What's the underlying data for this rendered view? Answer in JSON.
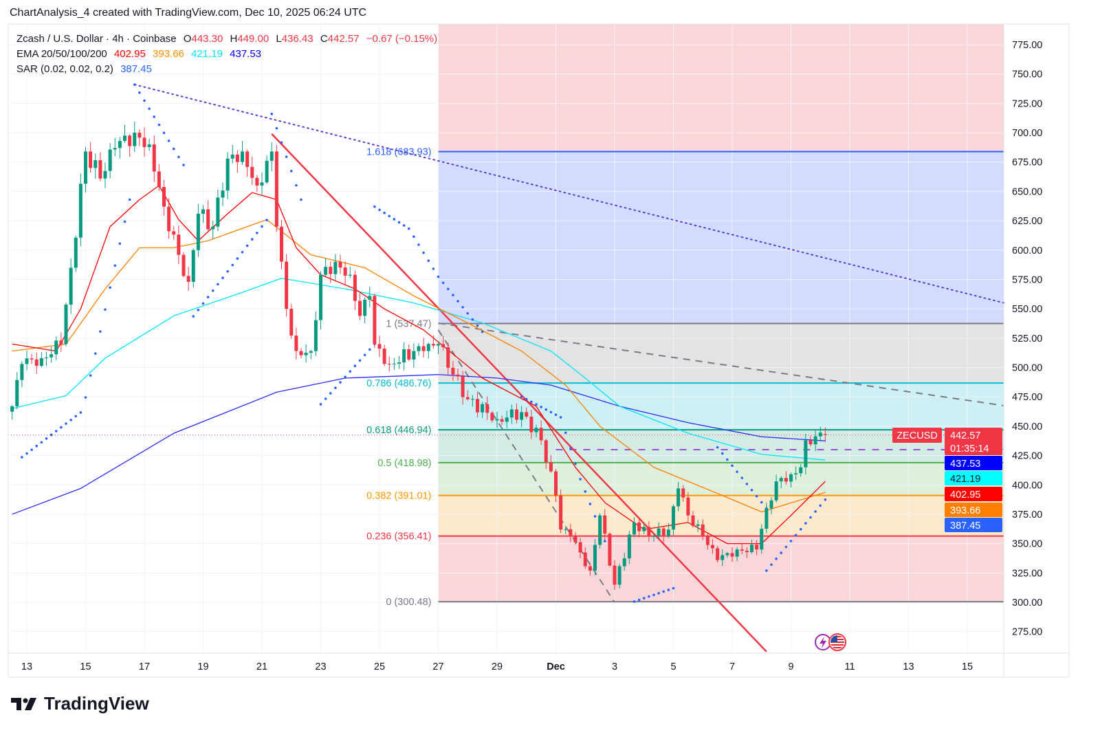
{
  "credit": "ChartAnalysis_4 created with TradingView.com, Dec 10, 2025 06:24 UTC",
  "legend": {
    "symbol": "Zcash / U.S. Dollar · 4h · Coinbase",
    "o_label": "O",
    "o": "443.30",
    "h_label": "H",
    "h": "449.00",
    "l_label": "L",
    "l": "436.43",
    "c_label": "C",
    "c": "442.57",
    "change": "−0.67 (−0.15%)",
    "ema_label": "EMA 20/50/100/200",
    "ema20": "402.95",
    "ema50": "393.66",
    "ema100": "421.19",
    "ema200": "437.53",
    "sar_label": "SAR (0.02, 0.02, 0.2)",
    "sar": "387.45"
  },
  "colors": {
    "up": "#089981",
    "down": "#f23645",
    "ema20": "#ff0000",
    "ema50": "#ff7f00",
    "ema100": "#00e5ff",
    "ema200": "#2a2aff",
    "sar": "#2962ff",
    "trend_red": "#f23645",
    "trend_dotted": "#5b3fd1",
    "dashed_gray": "#787b86",
    "dashed_purple": "#9c4fd6"
  },
  "logo": {
    "text": "TradingView"
  },
  "chart_data": {
    "type": "candlestick",
    "symbol_tag": "ZECUSD",
    "interval": "4h",
    "y_range": [
      262,
      785
    ],
    "x_range": [
      "2025-11-12T09:00",
      "2025-12-16T06:00"
    ],
    "price_axis": {
      "ticks": [
        "275.00",
        "300.00",
        "325.00",
        "350.00",
        "375.00",
        "400.00",
        "425.00",
        "450.00",
        "475.00",
        "500.00",
        "525.00",
        "550.00",
        "575.00",
        "600.00",
        "625.00",
        "650.00",
        "675.00",
        "700.00",
        "725.00",
        "750.00",
        "775.00"
      ]
    },
    "time_axis": {
      "ticks": [
        {
          "t": "2025-11-13T00:00",
          "label": "13"
        },
        {
          "t": "2025-11-15T00:00",
          "label": "15"
        },
        {
          "t": "2025-11-17T00:00",
          "label": "17"
        },
        {
          "t": "2025-11-19T00:00",
          "label": "19"
        },
        {
          "t": "2025-11-21T00:00",
          "label": "21"
        },
        {
          "t": "2025-11-23T00:00",
          "label": "23"
        },
        {
          "t": "2025-11-25T00:00",
          "label": "25"
        },
        {
          "t": "2025-11-27T00:00",
          "label": "27"
        },
        {
          "t": "2025-11-29T00:00",
          "label": "29"
        },
        {
          "t": "2025-12-01T00:00",
          "label": "Dec"
        },
        {
          "t": "2025-12-03T00:00",
          "label": "3"
        },
        {
          "t": "2025-12-05T00:00",
          "label": "5"
        },
        {
          "t": "2025-12-07T00:00",
          "label": "7"
        },
        {
          "t": "2025-12-09T00:00",
          "label": "9"
        },
        {
          "t": "2025-12-11T00:00",
          "label": "11"
        },
        {
          "t": "2025-12-13T00:00",
          "label": "13"
        },
        {
          "t": "2025-12-15T00:00",
          "label": "15"
        }
      ]
    },
    "close_path": [
      [
        "2025-11-12T12:00",
        467
      ],
      [
        "2025-11-12T20:00",
        503
      ],
      [
        "2025-11-13T12:00",
        508
      ],
      [
        "2025-11-14T04:00",
        520
      ],
      [
        "2025-11-14T12:00",
        585
      ],
      [
        "2025-11-15T00:00",
        684
      ],
      [
        "2025-11-15T12:00",
        661
      ],
      [
        "2025-11-16T00:00",
        687
      ],
      [
        "2025-11-16T16:00",
        700
      ],
      [
        "2025-11-17T04:00",
        690
      ],
      [
        "2025-11-17T16:00",
        637
      ],
      [
        "2025-11-18T04:00",
        596
      ],
      [
        "2025-11-18T12:00",
        573
      ],
      [
        "2025-11-18T20:00",
        631
      ],
      [
        "2025-11-19T08:00",
        620
      ],
      [
        "2025-11-19T20:00",
        678
      ],
      [
        "2025-11-20T08:00",
        684
      ],
      [
        "2025-11-20T20:00",
        655
      ],
      [
        "2025-11-21T08:00",
        684
      ],
      [
        "2025-11-21T12:00",
        620
      ],
      [
        "2025-11-21T20:00",
        550
      ],
      [
        "2025-11-22T04:00",
        514
      ],
      [
        "2025-11-22T16:00",
        514
      ],
      [
        "2025-11-23T00:00",
        579
      ],
      [
        "2025-11-23T12:00",
        590
      ],
      [
        "2025-11-24T00:00",
        579
      ],
      [
        "2025-11-24T08:00",
        544
      ],
      [
        "2025-11-24T16:00",
        561
      ],
      [
        "2025-11-24T20:00",
        520
      ],
      [
        "2025-11-25T08:00",
        503
      ],
      [
        "2025-11-26T04:00",
        514
      ],
      [
        "2025-11-26T12:00",
        514
      ],
      [
        "2025-11-27T00:00",
        520
      ],
      [
        "2025-11-27T12:00",
        494
      ],
      [
        "2025-11-28T00:00",
        473
      ],
      [
        "2025-11-29T00:00",
        456
      ],
      [
        "2025-11-29T20:00",
        462
      ],
      [
        "2025-11-30T12:00",
        438
      ],
      [
        "2025-12-01T00:00",
        391
      ],
      [
        "2025-12-01T04:00",
        362
      ],
      [
        "2025-12-01T12:00",
        356
      ],
      [
        "2025-12-02T04:00",
        327
      ],
      [
        "2025-12-02T12:00",
        374
      ],
      [
        "2025-12-03T00:00",
        315
      ],
      [
        "2025-12-03T16:00",
        368
      ],
      [
        "2025-12-04T04:00",
        356
      ],
      [
        "2025-12-04T20:00",
        362
      ],
      [
        "2025-12-05T04:00",
        397
      ],
      [
        "2025-12-05T12:00",
        374
      ],
      [
        "2025-12-06T00:00",
        356
      ],
      [
        "2025-12-06T12:00",
        336
      ],
      [
        "2025-12-07T04:00",
        345
      ],
      [
        "2025-12-07T20:00",
        345
      ],
      [
        "2025-12-08T04:00",
        380
      ],
      [
        "2025-12-08T12:00",
        403
      ],
      [
        "2025-12-09T00:00",
        409
      ],
      [
        "2025-12-09T08:00",
        415
      ],
      [
        "2025-12-09T12:00",
        438
      ],
      [
        "2025-12-10T04:00",
        442.57
      ]
    ],
    "last": {
      "open": 443.3,
      "high": 449.0,
      "low": 436.43,
      "close": 442.57,
      "countdown": "01:35:14"
    },
    "ema": [
      {
        "key": "ema200",
        "points": [
          [
            "2025-11-12T12:00",
            375
          ],
          [
            "2025-11-14T20:00",
            397
          ],
          [
            "2025-11-18T00:00",
            444
          ],
          [
            "2025-11-21T12:00",
            479
          ],
          [
            "2025-11-23T20:00",
            491
          ],
          [
            "2025-11-27T00:00",
            494
          ],
          [
            "2025-11-29T00:00",
            491
          ],
          [
            "2025-11-30T20:00",
            485
          ],
          [
            "2025-12-03T04:00",
            467
          ],
          [
            "2025-12-05T12:00",
            453
          ],
          [
            "2025-12-08T00:00",
            441
          ],
          [
            "2025-12-10T04:00",
            437.53
          ]
        ]
      },
      {
        "key": "ema100",
        "points": [
          [
            "2025-11-12T12:00",
            465
          ],
          [
            "2025-11-14T08:00",
            476
          ],
          [
            "2025-11-15T16:00",
            508
          ],
          [
            "2025-11-18T00:00",
            544
          ],
          [
            "2025-11-20T08:00",
            564
          ],
          [
            "2025-11-21T16:00",
            576
          ],
          [
            "2025-11-23T20:00",
            567
          ],
          [
            "2025-11-26T04:00",
            555
          ],
          [
            "2025-11-28T12:00",
            538
          ],
          [
            "2025-11-30T20:00",
            514
          ],
          [
            "2025-12-02T00:00",
            491
          ],
          [
            "2025-12-03T04:00",
            467
          ],
          [
            "2025-12-05T12:00",
            444
          ],
          [
            "2025-12-08T00:00",
            426
          ],
          [
            "2025-12-10T04:00",
            421.19
          ]
        ]
      },
      {
        "key": "ema50",
        "points": [
          [
            "2025-11-12T12:00",
            514
          ],
          [
            "2025-11-14T08:00",
            520
          ],
          [
            "2025-11-15T16:00",
            567
          ],
          [
            "2025-11-16T20:00",
            602
          ],
          [
            "2025-11-18T00:00",
            602
          ],
          [
            "2025-11-19T04:00",
            608
          ],
          [
            "2025-11-21T04:00",
            626
          ],
          [
            "2025-11-22T16:00",
            596
          ],
          [
            "2025-11-24T12:00",
            585
          ],
          [
            "2025-11-26T04:00",
            561
          ],
          [
            "2025-11-28T00:00",
            538
          ],
          [
            "2025-11-29T20:00",
            514
          ],
          [
            "2025-12-01T08:00",
            485
          ],
          [
            "2025-12-02T12:00",
            450
          ],
          [
            "2025-12-04T08:00",
            415
          ],
          [
            "2025-12-06T16:00",
            391
          ],
          [
            "2025-12-08T00:00",
            377
          ],
          [
            "2025-12-10T04:00",
            393.66
          ]
        ]
      },
      {
        "key": "ema20",
        "points": [
          [
            "2025-11-12T12:00",
            520
          ],
          [
            "2025-11-14T00:00",
            514
          ],
          [
            "2025-11-14T20:00",
            550
          ],
          [
            "2025-11-15T20:00",
            620
          ],
          [
            "2025-11-16T20:00",
            643
          ],
          [
            "2025-11-17T12:00",
            655
          ],
          [
            "2025-11-18T04:00",
            626
          ],
          [
            "2025-11-18T20:00",
            608
          ],
          [
            "2025-11-19T20:00",
            631
          ],
          [
            "2025-11-20T16:00",
            649
          ],
          [
            "2025-11-21T12:00",
            643
          ],
          [
            "2025-11-22T04:00",
            602
          ],
          [
            "2025-11-23T00:00",
            579
          ],
          [
            "2025-11-24T04:00",
            567
          ],
          [
            "2025-11-25T04:00",
            550
          ],
          [
            "2025-11-26T12:00",
            532
          ],
          [
            "2025-11-28T12:00",
            491
          ],
          [
            "2025-11-30T08:00",
            467
          ],
          [
            "2025-12-01T16:00",
            415
          ],
          [
            "2025-12-02T16:00",
            385
          ],
          [
            "2025-12-04T00:00",
            362
          ],
          [
            "2025-12-05T12:00",
            368
          ],
          [
            "2025-12-06T20:00",
            350
          ],
          [
            "2025-12-08T00:00",
            350
          ],
          [
            "2025-12-09T00:00",
            374
          ],
          [
            "2025-12-10T04:00",
            402.95
          ]
        ]
      }
    ],
    "sar_segments": [
      [
        [
          "2025-11-12T20:00",
          423.6
        ],
        [
          "2025-11-14T20:00",
          461.7
        ]
      ],
      [
        [
          "2025-11-15T00:00",
          474.5
        ],
        [
          "2025-11-16T12:00",
          643
        ]
      ],
      [
        [
          "2025-11-16T16:00",
          741
        ],
        [
          "2025-11-18T08:00",
          672.5
        ]
      ],
      [
        [
          "2025-11-18T16:00",
          543.6
        ],
        [
          "2025-11-21T04:00",
          625.6
        ]
      ],
      [
        [
          "2025-11-21T08:00",
          716
        ],
        [
          "2025-11-22T08:00",
          643
        ]
      ],
      [
        [
          "2025-11-23T00:00",
          468.7
        ],
        [
          "2025-11-24T20:00",
          520
        ]
      ],
      [
        [
          "2025-11-24T20:00",
          637
        ],
        [
          "2025-11-26T00:00",
          618.3
        ],
        [
          "2025-11-27T00:00",
          577.3
        ],
        [
          "2025-11-28T12:00",
          530.5
        ]
      ],
      [
        [
          "2025-11-29T20:00",
          475.2
        ],
        [
          "2025-12-01T04:00",
          457.6
        ],
        [
          "2025-12-01T20:00",
          404.9
        ],
        [
          "2025-12-02T16:00",
          352.1
        ]
      ],
      [
        [
          "2025-12-03T16:00",
          300.6
        ],
        [
          "2025-12-05T00:00",
          312
        ]
      ],
      [
        [
          "2025-12-06T12:00",
          432
        ],
        [
          "2025-12-08T04:00",
          380
        ]
      ],
      [
        [
          "2025-12-08T04:00",
          327
        ],
        [
          "2025-12-10T04:00",
          387.45
        ]
      ]
    ],
    "fib": {
      "start": "2025-11-27T00:00",
      "levels": [
        {
          "ratio": 1.618,
          "price": 683.93,
          "label": "1.618 (683.93)",
          "color": "#2962ff",
          "fill": "#d3dcff"
        },
        {
          "ratio": 1,
          "price": 537.47,
          "label": "1 (537.47)",
          "color": "#787b86",
          "fill": "#e3e3e3"
        },
        {
          "ratio": 0.786,
          "price": 486.76,
          "label": "0.786 (486.76)",
          "color": "#00bcd4",
          "fill": "#cdf0f4"
        },
        {
          "ratio": 0.618,
          "price": 446.94,
          "label": "0.618 (446.94)",
          "color": "#089981",
          "fill": "#d3ece6"
        },
        {
          "ratio": 0.5,
          "price": 418.98,
          "label": "0.5 (418.98)",
          "color": "#4caf50",
          "fill": "#deefdc"
        },
        {
          "ratio": 0.382,
          "price": 391.01,
          "label": "0.382 (391.01)",
          "color": "#ff9800",
          "fill": "#fde9cc"
        },
        {
          "ratio": 0.236,
          "price": 356.41,
          "label": "0.236 (356.41)",
          "color": "#f23645",
          "fill": "#f9d6d8"
        },
        {
          "ratio": 0,
          "price": 300.48,
          "label": "0 (300.48)",
          "color": "#787b86",
          "fill": "#f9d6d8"
        }
      ],
      "top_fill": "#f9d6d8"
    },
    "drawings": {
      "dotted_trend": [
        [
          "2025-11-16T16:00",
          741
        ],
        [
          "2025-12-16T06:00",
          555
        ]
      ],
      "red_trend": [
        [
          "2025-11-21T08:00",
          699
        ],
        [
          "2025-12-08T04:00",
          258
        ]
      ],
      "dashed_gray_upper": [
        [
          "2025-11-27T00:00",
          537.8
        ],
        [
          "2025-12-16T06:00",
          467.5
        ]
      ],
      "dashed_gray_lower": [
        [
          "2025-11-27T00:00",
          532
        ],
        [
          "2025-12-03T00:00",
          300
        ]
      ],
      "dashed_purple_level": {
        "from": "2025-12-01T00:00",
        "price": 430
      }
    },
    "price_tags": [
      {
        "value": "442.57",
        "sub": "01:35:14",
        "bg": "#f23645",
        "fg": "#ffffff"
      },
      {
        "value": "437.53",
        "bg": "#0000ff",
        "fg": "#ffffff"
      },
      {
        "value": "421.19",
        "bg": "#00ffff",
        "fg": "#131722"
      },
      {
        "value": "402.95",
        "bg": "#ff0000",
        "fg": "#ffffff"
      },
      {
        "value": "393.66",
        "bg": "#ff7f00",
        "fg": "#ffffff"
      },
      {
        "value": "387.45",
        "bg": "#2962ff",
        "fg": "#ffffff"
      }
    ],
    "event_icons": [
      "lightning-icon",
      "us-flag-icon"
    ]
  }
}
